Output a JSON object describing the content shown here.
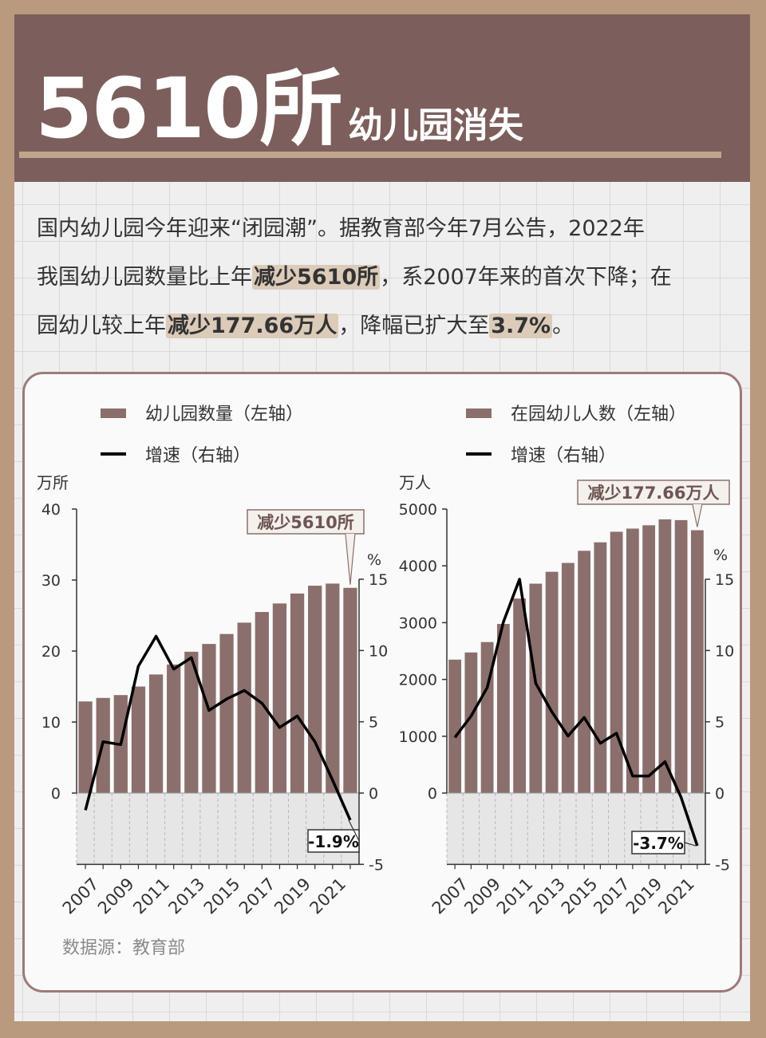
{
  "header": {
    "title_number": "5610所",
    "title_text": "幼儿园消失"
  },
  "intro": {
    "l1": "国内幼儿园今年迎来“闭园潮”。据教育部今年7月公告，2022年",
    "l2a": "我国幼儿园数量比上年",
    "l2b": "减少5610所",
    "l2c": "，系2007年来的首次下降；在",
    "l3a": "园幼儿较上年",
    "l3b": "减少177.66万人",
    "l3c": "，降幅已扩大至",
    "l3d": "3.7%",
    "l3e": "。"
  },
  "colors": {
    "bar": "#8b6f6c",
    "line": "#000000",
    "header": "#7c5f5c",
    "accent": "#c0a78c",
    "highlight": "#dccbb9"
  },
  "source": "数据源：教育部",
  "chart_data": [
    {
      "type": "bar+line",
      "legend": [
        "幼儿园数量（左轴）",
        "增速（右轴）"
      ],
      "left_unit": "万所",
      "right_unit": "%",
      "x": [
        2007,
        2008,
        2009,
        2010,
        2011,
        2012,
        2013,
        2014,
        2015,
        2016,
        2017,
        2018,
        2019,
        2020,
        2021,
        2022
      ],
      "x_ticks": [
        "2007",
        "2009",
        "2011",
        "2013",
        "2015",
        "2017",
        "2019",
        "2021"
      ],
      "series": [
        {
          "name": "幼儿园数量",
          "axis": "left",
          "values": [
            12.9,
            13.4,
            13.8,
            15.0,
            16.7,
            18.1,
            19.9,
            21.0,
            22.4,
            24.0,
            25.5,
            26.7,
            28.1,
            29.2,
            29.5,
            28.9
          ]
        },
        {
          "name": "增速",
          "axis": "right",
          "values": [
            -1.2,
            3.6,
            3.4,
            8.9,
            11.0,
            8.7,
            9.5,
            5.8,
            6.6,
            7.2,
            6.3,
            4.6,
            5.4,
            3.6,
            0.9,
            -1.9
          ]
        }
      ],
      "left_ticks": [
        0,
        10,
        20,
        30,
        40
      ],
      "right_ticks": [
        -5,
        0,
        5,
        10,
        15
      ],
      "left_range": [
        0,
        40
      ],
      "right_range": [
        -5,
        15
      ],
      "callout_top": "减少5610所",
      "callout_end": "-1.9%"
    },
    {
      "type": "bar+line",
      "legend": [
        "在园幼儿人数（左轴）",
        "增速（右轴）"
      ],
      "left_unit": "万人",
      "right_unit": "%",
      "x": [
        2007,
        2008,
        2009,
        2010,
        2011,
        2012,
        2013,
        2014,
        2015,
        2016,
        2017,
        2018,
        2019,
        2020,
        2021,
        2022
      ],
      "x_ticks": [
        "2007",
        "2009",
        "2011",
        "2013",
        "2015",
        "2017",
        "2019",
        "2021"
      ],
      "series": [
        {
          "name": "在园幼儿人数",
          "axis": "left",
          "values": [
            2349,
            2475,
            2658,
            2977,
            3424,
            3686,
            3895,
            4051,
            4265,
            4414,
            4600,
            4656,
            4714,
            4818,
            4805,
            4627
          ]
        },
        {
          "name": "增速",
          "axis": "right",
          "values": [
            3.9,
            5.4,
            7.4,
            12.0,
            15.0,
            7.7,
            5.7,
            4.0,
            5.3,
            3.5,
            4.2,
            1.2,
            1.2,
            2.2,
            -0.3,
            -3.7
          ]
        }
      ],
      "left_ticks": [
        0,
        1000,
        2000,
        3000,
        4000,
        5000
      ],
      "right_ticks": [
        -5,
        0,
        5,
        10,
        15
      ],
      "left_range": [
        0,
        5000
      ],
      "right_range": [
        -5,
        15
      ],
      "callout_top": "减少177.66万人",
      "callout_end": "-3.7%"
    }
  ]
}
